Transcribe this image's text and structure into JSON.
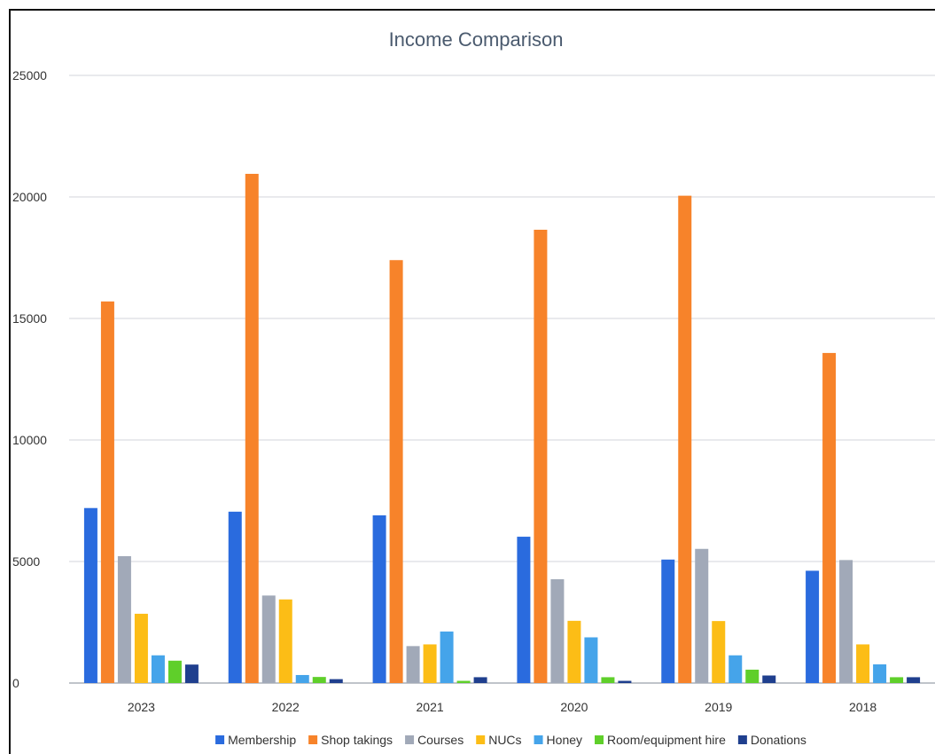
{
  "chart_data": {
    "type": "bar",
    "title": "Income Comparison",
    "xlabel": "",
    "ylabel": "",
    "ylim": [
      0,
      25000
    ],
    "yticks": [
      0,
      5000,
      10000,
      15000,
      20000,
      25000
    ],
    "grid": true,
    "legend_position": "bottom",
    "categories": [
      "2023",
      "2022",
      "2021",
      "2020",
      "2019",
      "2018"
    ],
    "series": [
      {
        "name": "Membership",
        "color": "#2a6bde",
        "values": [
          7200,
          7050,
          6900,
          6020,
          5080,
          4620
        ]
      },
      {
        "name": "Shop takings",
        "color": "#f7832a",
        "values": [
          15700,
          20950,
          17400,
          18650,
          20050,
          13580
        ]
      },
      {
        "name": "Courses",
        "color": "#a1a9b8",
        "values": [
          5220,
          3600,
          1520,
          4270,
          5520,
          5060
        ]
      },
      {
        "name": "NUCs",
        "color": "#fcbd16",
        "values": [
          2850,
          3440,
          1590,
          2560,
          2550,
          1590
        ]
      },
      {
        "name": "Honey",
        "color": "#45a4ea",
        "values": [
          1140,
          330,
          2120,
          1880,
          1140,
          770
        ]
      },
      {
        "name": "Room/equipment hire",
        "color": "#5fcf2a",
        "values": [
          920,
          250,
          90,
          240,
          550,
          240
        ]
      },
      {
        "name": "Donations",
        "color": "#1f3f8e",
        "values": [
          760,
          160,
          240,
          90,
          310,
          240
        ]
      }
    ]
  }
}
